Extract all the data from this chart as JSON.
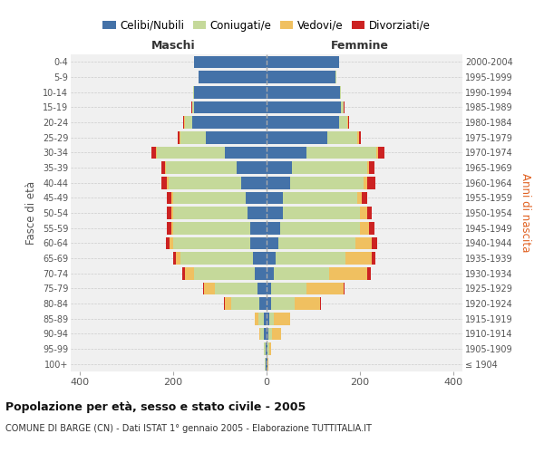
{
  "age_groups": [
    "100+",
    "95-99",
    "90-94",
    "85-89",
    "80-84",
    "75-79",
    "70-74",
    "65-69",
    "60-64",
    "55-59",
    "50-54",
    "45-49",
    "40-44",
    "35-39",
    "30-34",
    "25-29",
    "20-24",
    "15-19",
    "10-14",
    "5-9",
    "0-4"
  ],
  "birth_years": [
    "≤ 1904",
    "1905-1909",
    "1910-1914",
    "1915-1919",
    "1920-1924",
    "1925-1929",
    "1930-1934",
    "1935-1939",
    "1940-1944",
    "1945-1949",
    "1950-1954",
    "1955-1959",
    "1960-1964",
    "1965-1969",
    "1970-1974",
    "1975-1979",
    "1980-1984",
    "1985-1989",
    "1990-1994",
    "1995-1999",
    "2000-2004"
  ],
  "maschi": {
    "celibi": [
      2,
      2,
      5,
      5,
      15,
      20,
      25,
      30,
      35,
      35,
      40,
      45,
      55,
      65,
      90,
      130,
      160,
      155,
      155,
      145,
      155
    ],
    "coniugati": [
      1,
      3,
      8,
      12,
      60,
      90,
      130,
      155,
      165,
      165,
      160,
      155,
      155,
      150,
      145,
      55,
      15,
      5,
      2,
      1,
      1
    ],
    "vedovi": [
      0,
      1,
      3,
      8,
      15,
      25,
      20,
      10,
      8,
      5,
      5,
      5,
      3,
      2,
      2,
      2,
      1,
      0,
      0,
      0,
      0
    ],
    "divorziati": [
      0,
      0,
      0,
      0,
      2,
      2,
      5,
      5,
      8,
      8,
      8,
      8,
      12,
      8,
      10,
      3,
      2,
      1,
      0,
      0,
      0
    ]
  },
  "femmine": {
    "nubili": [
      1,
      2,
      3,
      5,
      10,
      10,
      15,
      20,
      25,
      30,
      35,
      35,
      50,
      55,
      85,
      130,
      155,
      160,
      158,
      148,
      155
    ],
    "coniugate": [
      1,
      3,
      8,
      10,
      50,
      75,
      120,
      150,
      165,
      170,
      165,
      160,
      158,
      160,
      150,
      65,
      18,
      5,
      2,
      1,
      1
    ],
    "vedove": [
      2,
      5,
      20,
      35,
      55,
      80,
      80,
      55,
      35,
      20,
      15,
      10,
      8,
      5,
      5,
      3,
      2,
      1,
      0,
      0,
      0
    ],
    "divorziate": [
      0,
      0,
      0,
      1,
      2,
      2,
      8,
      8,
      12,
      12,
      10,
      10,
      18,
      12,
      12,
      5,
      2,
      1,
      0,
      0,
      0
    ]
  },
  "colors": {
    "celibi_nubili": "#4472a8",
    "coniugati": "#c5d99a",
    "vedovi": "#f0c060",
    "divorziati": "#cc2222"
  },
  "title1": "Popolazione per età, sesso e stato civile - 2005",
  "title2": "COMUNE DI BARGE (CN) - Dati ISTAT 1° gennaio 2005 - Elaborazione TUTTITALIA.IT",
  "xlabel_left": "Maschi",
  "xlabel_right": "Femmine",
  "ylabel_left": "Fasce di età",
  "ylabel_right": "Anni di nascita",
  "xlim": 420,
  "legend_labels": [
    "Celibi/Nubili",
    "Coniugati/e",
    "Vedovi/e",
    "Divorziati/e"
  ],
  "background_color": "#ffffff",
  "grid_color": "#cccccc",
  "ax_bg": "#f0f0f0"
}
